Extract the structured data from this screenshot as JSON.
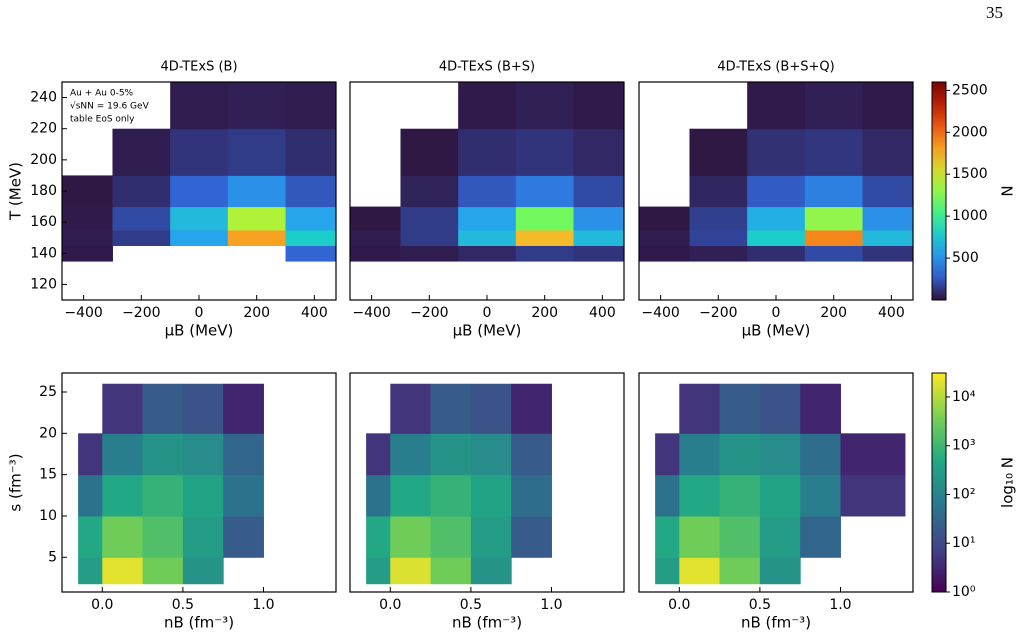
{
  "page_number": "35",
  "chart_data": [
    {
      "type": "heatmap",
      "title": "4D-TExS  (B)",
      "xlabel": "μB (MeV)",
      "ylabel": "T (MeV)",
      "annotations": [
        "Au + Au  0-5%",
        "√sNN = 19.6 GeV",
        "table EoS only"
      ],
      "xlim": [
        -475,
        475
      ],
      "ylim": [
        110,
        250
      ],
      "xticks": [
        {
          "value": -400,
          "label": "−400"
        },
        {
          "value": -200,
          "label": "−200"
        },
        0,
        200,
        400
      ],
      "yticks": [
        120,
        140,
        160,
        180,
        200,
        220,
        240
      ],
      "xbins": [
        -475,
        -300,
        -100,
        100,
        300,
        475
      ],
      "ybins": [
        135,
        145,
        155,
        170,
        190,
        220,
        250
      ],
      "values": [
        [
          30,
          null,
          null,
          null,
          300
        ],
        [
          40,
          150,
          600,
          1800,
          800
        ],
        [
          30,
          200,
          700,
          1400,
          600
        ],
        [
          20,
          100,
          300,
          500,
          250
        ],
        [
          null,
          40,
          120,
          150,
          100
        ],
        [
          null,
          null,
          40,
          50,
          40
        ]
      ]
    },
    {
      "type": "heatmap",
      "title": "4D-TExS  (B+S)",
      "xlabel": "μB (MeV)",
      "xlim": [
        -475,
        475
      ],
      "ylim": [
        110,
        250
      ],
      "xticks": [
        {
          "value": -400,
          "label": "−400"
        },
        {
          "value": -200,
          "label": "−200"
        },
        0,
        200,
        400
      ],
      "xbins": [
        -475,
        -300,
        -100,
        100,
        300,
        475
      ],
      "ybins": [
        135,
        145,
        155,
        170,
        190,
        220,
        250
      ],
      "values": [
        [
          30,
          40,
          80,
          150,
          120
        ],
        [
          40,
          150,
          700,
          1700,
          700
        ],
        [
          20,
          150,
          600,
          1200,
          500
        ],
        [
          null,
          60,
          250,
          400,
          200
        ],
        [
          null,
          20,
          100,
          120,
          80
        ],
        [
          null,
          null,
          30,
          50,
          30
        ]
      ]
    },
    {
      "type": "heatmap",
      "title": "4D-TExS  (B+S+Q)",
      "xlabel": "μB (MeV)",
      "xlim": [
        -475,
        475
      ],
      "ylim": [
        110,
        250
      ],
      "xticks": [
        {
          "value": -400,
          "label": "−400"
        },
        {
          "value": -200,
          "label": "−200"
        },
        0,
        200,
        400
      ],
      "xbins": [
        -475,
        -300,
        -100,
        100,
        300,
        475
      ],
      "ybins": [
        135,
        145,
        155,
        170,
        190,
        220,
        250
      ],
      "values": [
        [
          30,
          50,
          100,
          200,
          120
        ],
        [
          40,
          180,
          800,
          1900,
          700
        ],
        [
          20,
          160,
          650,
          1300,
          500
        ],
        [
          null,
          70,
          260,
          420,
          200
        ],
        [
          null,
          20,
          110,
          130,
          80
        ],
        [
          null,
          null,
          30,
          50,
          30
        ]
      ],
      "colorbar": {
        "label": "N",
        "lim": [
          0,
          2600
        ],
        "ticks": [
          500,
          1000,
          1500,
          2000,
          2500
        ],
        "log": false
      }
    },
    {
      "type": "heatmap",
      "xlabel": "nB (fm⁻³)",
      "ylabel": "s (fm⁻³)",
      "xlim": [
        -0.25,
        1.45
      ],
      "ylim": [
        0.8,
        27.3
      ],
      "xticks": [
        {
          "value": 0,
          "label": "0.0"
        },
        0.5,
        {
          "value": 1,
          "label": "1.0"
        }
      ],
      "yticks": [
        5,
        10,
        15,
        20,
        25
      ],
      "xbins": [
        -0.15,
        0,
        0.25,
        0.5,
        0.75,
        1.0
      ],
      "ybins": [
        1.8,
        5,
        10,
        15,
        20,
        26
      ],
      "values": [
        [
          300,
          20000,
          3000,
          200,
          null
        ],
        [
          500,
          3000,
          1500,
          300,
          20
        ],
        [
          50,
          500,
          800,
          400,
          50
        ],
        [
          5,
          80,
          200,
          150,
          30
        ],
        [
          null,
          5,
          20,
          15,
          3
        ]
      ]
    },
    {
      "type": "heatmap",
      "xlabel": "nB (fm⁻³)",
      "xlim": [
        -0.25,
        1.45
      ],
      "ylim": [
        0.8,
        27.3
      ],
      "xticks": [
        {
          "value": 0,
          "label": "0.0"
        },
        0.5,
        {
          "value": 1,
          "label": "1.0"
        }
      ],
      "xbins": [
        -0.15,
        0,
        0.25,
        0.5,
        0.75,
        1.0
      ],
      "ybins": [
        1.8,
        5,
        10,
        15,
        20,
        26
      ],
      "values": [
        [
          300,
          18000,
          3000,
          200,
          null
        ],
        [
          500,
          3000,
          1500,
          300,
          20
        ],
        [
          50,
          500,
          800,
          400,
          40
        ],
        [
          5,
          80,
          200,
          150,
          20
        ],
        [
          null,
          5,
          20,
          15,
          3
        ]
      ]
    },
    {
      "type": "heatmap",
      "xlabel": "nB (fm⁻³)",
      "xlim": [
        -0.25,
        1.45
      ],
      "ylim": [
        0.8,
        27.3
      ],
      "xticks": [
        {
          "value": 0,
          "label": "0.0"
        },
        0.5,
        {
          "value": 1,
          "label": "1.0"
        }
      ],
      "xbins": [
        -0.15,
        0,
        0.25,
        0.5,
        0.75,
        1.0,
        1.4
      ],
      "ybins": [
        1.8,
        5,
        10,
        15,
        20,
        26
      ],
      "values": [
        [
          300,
          20000,
          3000,
          200,
          null,
          null
        ],
        [
          500,
          3000,
          1500,
          300,
          30,
          null
        ],
        [
          50,
          500,
          800,
          400,
          80,
          5
        ],
        [
          5,
          80,
          200,
          150,
          40,
          3
        ],
        [
          null,
          5,
          20,
          15,
          3,
          null
        ]
      ],
      "colorbar": {
        "label": "log₁₀ N",
        "lim": [
          1,
          31000
        ],
        "log": true,
        "ticks": [
          {
            "value": 1,
            "label": "10⁰"
          },
          {
            "value": 10,
            "label": "10¹"
          },
          {
            "value": 100,
            "label": "10²"
          },
          {
            "value": 1000,
            "label": "10³"
          },
          {
            "value": 10000,
            "label": "10⁴"
          }
        ]
      }
    }
  ]
}
